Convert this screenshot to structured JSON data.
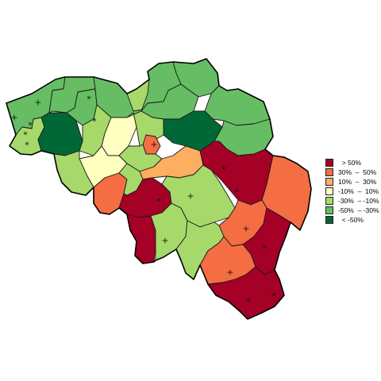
{
  "legend": {
    "entries": [
      {
        "label": "  > 50%",
        "color": "#a50026"
      },
      {
        "label": "30%  –  50%",
        "color": "#f46d43"
      },
      {
        "label": "10%  –  30%",
        "color": "#fdae61"
      },
      {
        "label": "-10%  –  10%",
        "color": "#ffffbf"
      },
      {
        "label": "-30%  – -10%",
        "color": "#a6d96a"
      },
      {
        "label": "-50%  – -30%",
        "color": "#66bd63"
      },
      {
        "label": "  < -50%",
        "color": "#006837"
      }
    ]
  },
  "markers": {
    "plus": "+",
    "star": "*"
  }
}
